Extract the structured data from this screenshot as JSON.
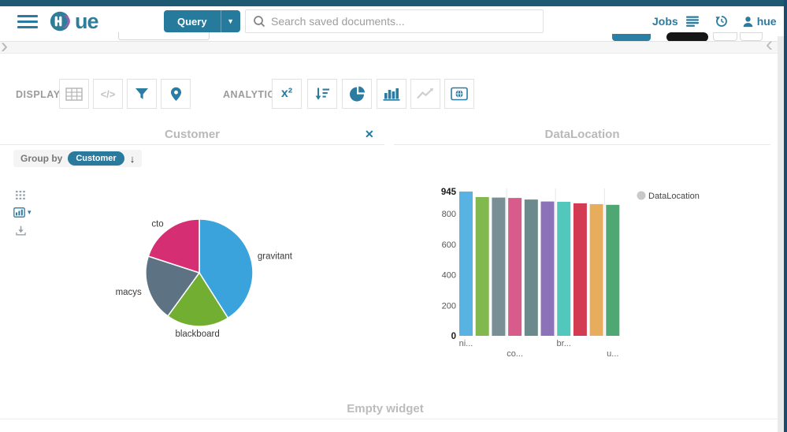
{
  "navbar": {
    "logo_text": "ue",
    "query_label": "Query",
    "search_placeholder": "Search saved documents...",
    "jobs_label": "Jobs",
    "user_name": "hue"
  },
  "icons": {
    "close_glyph": "✕",
    "left_chevron": "›",
    "right_chevron": "‹",
    "caret_down": "▾",
    "sort_arrow": "↓",
    "code_glyph": "</>",
    "x2_glyph": "x²"
  },
  "toolbar": {
    "display_label": "DISPLAY",
    "analytics_label": "ANALYTICS"
  },
  "customer_widget": {
    "title": "Customer",
    "group_by_label": "Group by",
    "group_by_value": "Customer"
  },
  "datalocation_widget": {
    "title": "DataLocation"
  },
  "empty_widget": {
    "title": "Empty widget"
  },
  "colors": {
    "brand_blue": "#2c7b9e",
    "top_strip": "#1e5a72",
    "right_edge": "#1d4b70",
    "legend_dot": "#c9c9c9"
  },
  "chart_data": [
    {
      "type": "pie",
      "widget": "Customer",
      "labels": [
        "gravitant",
        "blackboard",
        "macys",
        "cto"
      ],
      "values": [
        41,
        19,
        20,
        20
      ],
      "colors": [
        "#3ba3dc",
        "#72ae32",
        "#5d7384",
        "#d62e72"
      ],
      "legend_position": "none"
    },
    {
      "type": "bar",
      "widget": "DataLocation",
      "legend": "DataLocation",
      "legend_position": "right",
      "values": [
        945,
        909,
        906,
        903,
        893,
        880,
        878,
        868,
        863,
        858
      ],
      "colors": [
        "#58b3e3",
        "#82b94e",
        "#7a8e96",
        "#d75c8b",
        "#6c8a8c",
        "#8c72b8",
        "#52c7bb",
        "#d23b51",
        "#e8ad5c",
        "#4fa873"
      ],
      "x_tick_labels": [
        {
          "text": "ni...",
          "bar_index": 0,
          "row": 0
        },
        {
          "text": "co...",
          "bar_index": 3,
          "row": 1
        },
        {
          "text": "br...",
          "bar_index": 6,
          "row": 0
        },
        {
          "text": "u...",
          "bar_index": 9,
          "row": 1
        }
      ],
      "y_ticks": [
        945,
        800,
        600,
        400,
        200,
        0
      ],
      "ylim": [
        0,
        945
      ],
      "grid": "vertical"
    }
  ]
}
